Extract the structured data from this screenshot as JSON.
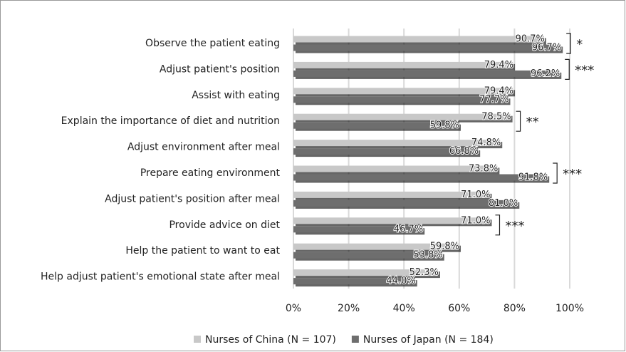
{
  "chart_data": {
    "type": "bar",
    "orientation": "horizontal",
    "categories": [
      "Observe the patient eating",
      "Adjust patient's position",
      "Assist with eating",
      "Explain the importance of diet and nutrition",
      "Adjust environment after meal",
      "Prepare eating environment",
      "Adjust patient's position after meal",
      "Provide advice on diet",
      "Help the patient to want to eat",
      "Help adjust patient's emotional state after meal"
    ],
    "series": [
      {
        "name": "Nurses of China (N = 107)",
        "color": "#c8c8c8",
        "values": [
          90.7,
          79.4,
          79.4,
          78.5,
          74.8,
          73.8,
          71.0,
          71.0,
          59.8,
          52.3
        ],
        "value_labels": [
          "90.7%",
          "79.4%",
          "79.4%",
          "78.5%",
          "74.8%",
          "73.8%",
          "71.0%",
          "71.0%",
          "59.8%",
          "52.3%"
        ]
      },
      {
        "name": "Nurses of Japan (N = 184)",
        "color": "#6e6e6e",
        "values": [
          96.7,
          96.2,
          77.7,
          59.8,
          66.8,
          91.8,
          81.0,
          46.7,
          53.8,
          44.0
        ],
        "value_labels": [
          "96.7%",
          "96.2%",
          "77.7%",
          "59.8%",
          "66.8%",
          "91.8%",
          "81.0%",
          "46.7%",
          "53.8%",
          "44.0%"
        ]
      }
    ],
    "significance": [
      "*",
      "***",
      null,
      "**",
      null,
      "***",
      null,
      "***",
      null,
      null
    ],
    "xlim": [
      0,
      100
    ],
    "xticks": [
      {
        "value": 0,
        "label": "0%"
      },
      {
        "value": 20,
        "label": "20%"
      },
      {
        "value": 40,
        "label": "40%"
      },
      {
        "value": 60,
        "label": "60%"
      },
      {
        "value": 80,
        "label": "80%"
      },
      {
        "value": 100,
        "label": "100%"
      }
    ],
    "grid": true,
    "legend": "bottom"
  }
}
